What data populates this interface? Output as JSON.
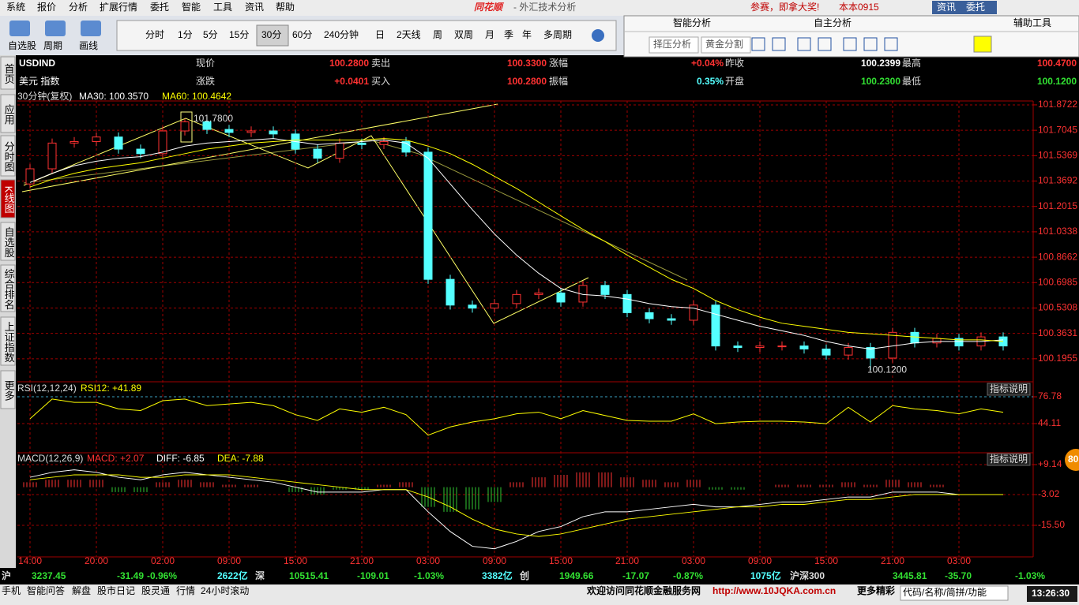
{
  "menu": [
    "系统",
    "报价",
    "分析",
    "扩展行情",
    "委托",
    "智能",
    "工具",
    "资讯",
    "帮助"
  ],
  "app_title": {
    "logo": "同花顺",
    "subtitle": "- 外汇技术分析"
  },
  "top_right": [
    "参赛，即拿大奖!",
    "本本0915",
    "资讯",
    "委托"
  ],
  "toolbar_left": [
    "自选股",
    "周期",
    "画线"
  ],
  "periods": [
    "分时",
    "1分",
    "5分",
    "15分",
    "30分",
    "60分",
    "240分钟",
    "日",
    "2天线",
    "周",
    "双周",
    "月",
    "季",
    "年",
    "多周期"
  ],
  "analysis_tabs": [
    "智能分析",
    "自主分析",
    "辅助工具"
  ],
  "analysis_buttons": [
    "择压分析",
    "黄金分割"
  ],
  "sidebar": [
    "首页",
    "应用",
    "分时图",
    "K线图",
    "自选股",
    "综合排名",
    "上证指数",
    "更多"
  ],
  "quote": {
    "symbol": "USDIND",
    "name": "美元 指数",
    "row1": [
      [
        "现价",
        "100.2800"
      ],
      [
        "卖出",
        "100.3300"
      ],
      [
        "涨幅",
        "+0.04%"
      ],
      [
        "昨收",
        "100.2399"
      ],
      [
        "最高",
        "100.4700"
      ]
    ],
    "row2": [
      [
        "涨跌",
        "+0.0401"
      ],
      [
        "买入",
        "100.2800"
      ],
      [
        "振幅",
        "0.35%"
      ],
      [
        "开盘",
        "100.2300"
      ],
      [
        "最低",
        "100.1200"
      ]
    ]
  },
  "chart_data": [
    {
      "type": "candlestick",
      "period_label": "30分钟(复权)",
      "categories": [
        "14:00",
        null,
        null,
        "20:00",
        null,
        null,
        "02:00",
        null,
        null,
        "09:00",
        null,
        null,
        "15:00",
        null,
        null,
        "21:00",
        null,
        null,
        "03:00",
        null,
        null,
        "09:00",
        null,
        null,
        "15:00",
        null,
        null,
        "21:00",
        null,
        null,
        "03:00",
        null,
        null,
        "09:00",
        null,
        null,
        "15:00",
        null,
        null,
        "21:00",
        null,
        null,
        "03:00",
        null,
        null
      ],
      "open": [
        101.35,
        101.45,
        101.62,
        101.63,
        101.66,
        101.58,
        101.55,
        101.7,
        101.76,
        101.71,
        101.69,
        101.7,
        101.68,
        101.58,
        101.52,
        101.62,
        101.61,
        101.63,
        101.56,
        100.72,
        100.55,
        100.53,
        100.56,
        100.62,
        100.63,
        100.57,
        100.68,
        100.62,
        100.5,
        100.46,
        100.45,
        100.55,
        100.28,
        100.27,
        100.28,
        100.28,
        100.26,
        100.22,
        100.27,
        100.2,
        100.37,
        100.3,
        100.33,
        100.28,
        100.34
      ],
      "close": [
        101.45,
        101.62,
        101.63,
        101.66,
        101.58,
        101.55,
        101.7,
        101.76,
        101.71,
        101.69,
        101.7,
        101.68,
        101.58,
        101.52,
        101.62,
        101.61,
        101.63,
        101.56,
        100.72,
        100.55,
        100.53,
        100.56,
        100.62,
        100.63,
        100.57,
        100.68,
        100.62,
        100.5,
        100.46,
        100.45,
        100.55,
        100.28,
        100.27,
        100.28,
        100.28,
        100.26,
        100.22,
        100.27,
        100.2,
        100.37,
        100.3,
        100.33,
        100.28,
        100.34,
        100.28
      ],
      "high": [
        101.48,
        101.65,
        101.66,
        101.69,
        101.69,
        101.61,
        101.73,
        101.78,
        101.79,
        101.74,
        101.73,
        101.73,
        101.71,
        101.61,
        101.65,
        101.65,
        101.66,
        101.66,
        101.59,
        100.75,
        100.58,
        100.59,
        100.65,
        100.66,
        100.66,
        100.71,
        100.71,
        100.65,
        100.53,
        100.49,
        100.58,
        100.58,
        100.31,
        100.31,
        100.31,
        100.31,
        100.29,
        100.3,
        100.3,
        100.4,
        100.4,
        100.36,
        100.36,
        100.37,
        100.37
      ],
      "low": [
        101.32,
        101.42,
        101.59,
        101.6,
        101.55,
        101.52,
        101.52,
        101.67,
        101.68,
        101.66,
        101.66,
        101.65,
        101.55,
        101.49,
        101.49,
        101.58,
        101.58,
        101.53,
        100.69,
        100.52,
        100.5,
        100.5,
        100.53,
        100.59,
        100.54,
        100.54,
        100.59,
        100.47,
        100.43,
        100.42,
        100.42,
        100.25,
        100.24,
        100.24,
        100.25,
        100.23,
        100.19,
        100.19,
        100.12,
        100.17,
        100.27,
        100.27,
        100.25,
        100.25,
        100.25
      ],
      "up_color": "#ff3232",
      "down_color": "#54ffff",
      "series": [
        {
          "name": "MA30: 100.3570",
          "color": "#ffffff",
          "values": [
            101.36,
            101.42,
            101.47,
            101.5,
            101.52,
            101.53,
            101.56,
            101.6,
            101.62,
            101.63,
            101.64,
            101.65,
            101.63,
            101.61,
            101.62,
            101.63,
            101.64,
            101.62,
            101.52,
            101.35,
            101.18,
            101.02,
            100.88,
            100.76,
            100.66,
            100.62,
            100.61,
            100.59,
            100.56,
            100.54,
            100.53,
            100.49,
            100.45,
            100.41,
            100.38,
            100.35,
            100.31,
            100.28,
            100.26,
            100.28,
            100.3,
            100.31,
            100.31,
            100.31,
            100.32
          ]
        },
        {
          "name": "MA60: 100.4642",
          "color": "#ffff00",
          "values": [
            101.33,
            101.38,
            101.42,
            101.45,
            101.47,
            101.49,
            101.52,
            101.55,
            101.58,
            101.6,
            101.62,
            101.63,
            101.64,
            101.64,
            101.64,
            101.64,
            101.65,
            101.64,
            101.6,
            101.55,
            101.48,
            101.4,
            101.32,
            101.23,
            101.14,
            101.05,
            100.97,
            100.88,
            100.8,
            100.72,
            100.66,
            100.58,
            100.52,
            100.47,
            100.43,
            100.41,
            100.39,
            100.37,
            100.36,
            100.35,
            100.34,
            100.33,
            100.32,
            100.32,
            100.31
          ]
        }
      ],
      "annotations": [
        {
          "value": 101.78,
          "label": "101.7800"
        },
        {
          "value": 100.12,
          "label": "100.1200"
        }
      ],
      "ylim": [
        100.054,
        101.898
      ],
      "yticks": [
        101.8722,
        101.7045,
        101.5369,
        101.3692,
        101.2015,
        101.0338,
        100.8662,
        100.6985,
        100.5308,
        100.3631,
        100.1955
      ],
      "grid": true
    },
    {
      "type": "line",
      "title": "RSI(12,12,24)",
      "help": "指标说明",
      "series": [
        {
          "name": "RSI12: +41.89",
          "color": "#ffff00",
          "values": [
            50,
            74,
            70,
            70,
            62,
            60,
            72,
            74,
            66,
            68,
            70,
            66,
            55,
            48,
            62,
            58,
            64,
            55,
            30,
            40,
            46,
            50,
            56,
            58,
            50,
            60,
            54,
            48,
            47,
            47,
            56,
            44,
            46,
            47,
            47,
            46,
            44,
            64,
            46,
            66,
            62,
            60,
            56,
            62,
            58
          ]
        }
      ],
      "ylim": [
        14.32,
        92.2
      ],
      "yticks": [
        76.78,
        44.11
      ],
      "grid": true
    },
    {
      "type": "macd",
      "title": "MACD(12,26,9)",
      "help": "指标说明",
      "series": [
        {
          "name": "MACD: +2.07",
          "color": "#ff3232",
          "negative_color": "#32c832",
          "values": [
            2,
            3,
            3,
            3,
            -2,
            -2,
            2,
            3,
            2,
            1,
            1,
            0,
            -2,
            -3,
            -1,
            -1,
            1,
            2,
            -8,
            -10,
            -9,
            -6,
            2,
            4,
            5,
            6,
            6,
            4,
            3,
            2,
            3,
            -1,
            -1,
            0,
            1,
            1,
            1,
            2,
            1,
            3,
            2,
            1,
            0,
            0,
            0
          ]
        },
        {
          "name": "DIFF: -6.85",
          "color": "#ffffff",
          "values": [
            4,
            6,
            7,
            6,
            4,
            3,
            5,
            6,
            5,
            4,
            3,
            2,
            0,
            -2,
            -2,
            -2,
            -1,
            -1,
            -10,
            -18,
            -24,
            -25,
            -22,
            -18,
            -16,
            -12,
            -10,
            -10,
            -9,
            -8,
            -7,
            -8,
            -8,
            -7,
            -6,
            -6,
            -5,
            -4,
            -4,
            -2,
            -2,
            -2,
            -3,
            -3,
            -3
          ]
        },
        {
          "name": "DEA: -7.88",
          "color": "#ffff00",
          "values": [
            3,
            4,
            5,
            5,
            5,
            4,
            4,
            5,
            5,
            5,
            4,
            3,
            2,
            1,
            0,
            -1,
            -1,
            -1,
            -4,
            -8,
            -13,
            -17,
            -19,
            -20,
            -19,
            -17,
            -15,
            -13,
            -12,
            -11,
            -10,
            -9,
            -8,
            -8,
            -7,
            -7,
            -6,
            -5,
            -5,
            -4,
            -3,
            -3,
            -3,
            -3,
            -3
          ]
        }
      ],
      "ylim": [
        -27.98,
        12.66
      ],
      "yticks": [
        {
          "value": 9.14,
          "label": "+9.14"
        },
        -3.02,
        {
          "value": -15.5,
          "label": "-15.50"
        }
      ],
      "grid": true
    }
  ],
  "badge": "80",
  "ticker": [
    "沪",
    "3237.45",
    "-31.49",
    "-0.96%",
    "2622亿",
    "深",
    "10515.41",
    "-109.01",
    "-1.03%",
    "3382亿",
    "创",
    "1949.66",
    "-17.07",
    "-0.87%",
    "1075亿",
    "沪深300",
    "3445.81",
    "-35.70",
    "-1.03%"
  ],
  "status_left": [
    "手机",
    "智能问答",
    "解盘",
    "股市日记",
    "股灵通",
    "行情",
    "24小时滚动"
  ],
  "status_right": [
    "欢迎访问同花顺金融服务网",
    "http://www.10JQKA.com.cn",
    "更多精彩"
  ],
  "search_placeholder": "代码/名称/简拼/功能",
  "clock": "13:26:30"
}
